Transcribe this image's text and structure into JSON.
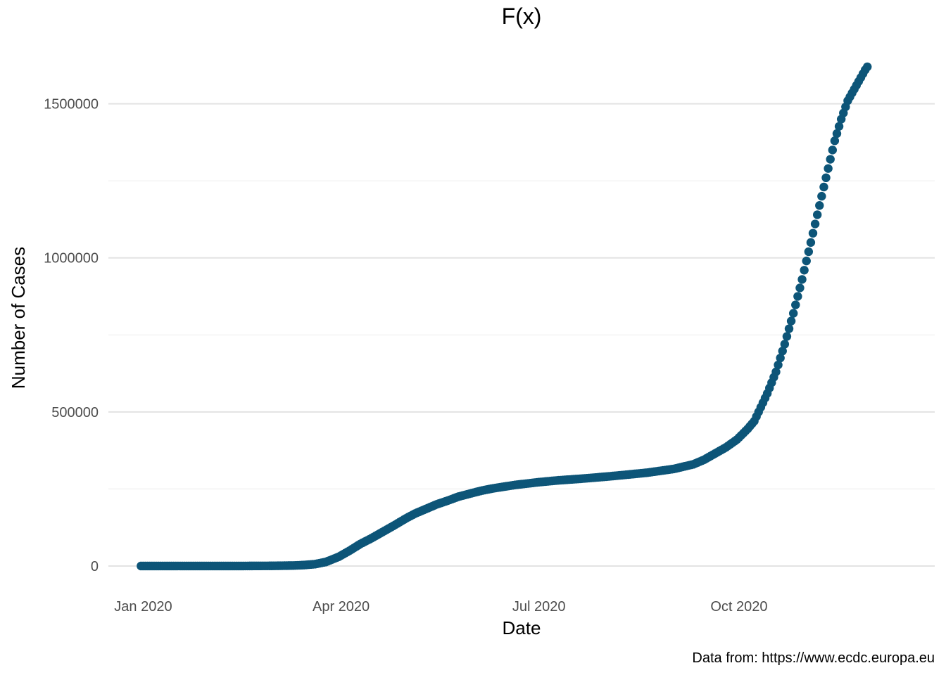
{
  "chart_data": {
    "type": "scatter",
    "title": "F(x)",
    "xlabel": "Date",
    "ylabel": "Number of Cases",
    "caption": "Data from: https://www.ecdc.europa.eu",
    "x_ticks": [
      {
        "label": "Jan 2020",
        "date": "2020-01-01"
      },
      {
        "label": "Apr 2020",
        "date": "2020-04-01"
      },
      {
        "label": "Jul 2020",
        "date": "2020-07-01"
      },
      {
        "label": "Oct 2020",
        "date": "2020-10-01"
      }
    ],
    "y_ticks": [
      {
        "label": "0",
        "value": 0
      },
      {
        "label": "500000",
        "value": 500000
      },
      {
        "label": "1000000",
        "value": 1000000
      },
      {
        "label": "1500000",
        "value": 1500000
      }
    ],
    "xlim": [
      "2019-12-16",
      "2020-12-30"
    ],
    "ylim": [
      -80000,
      1700000
    ],
    "grid": true,
    "point_color": "#0d5578",
    "series": [
      {
        "points": [
          [
            "2019-12-31",
            0
          ],
          [
            "2020-01-15",
            0
          ],
          [
            "2020-02-01",
            0
          ],
          [
            "2020-02-15",
            0
          ],
          [
            "2020-03-01",
            500
          ],
          [
            "2020-03-10",
            1500
          ],
          [
            "2020-03-15",
            3000
          ],
          [
            "2020-03-20",
            6000
          ],
          [
            "2020-03-25",
            13000
          ],
          [
            "2020-03-31",
            30000
          ],
          [
            "2020-04-05",
            50000
          ],
          [
            "2020-04-10",
            72000
          ],
          [
            "2020-04-15",
            90000
          ],
          [
            "2020-04-20",
            110000
          ],
          [
            "2020-04-25",
            130000
          ],
          [
            "2020-05-01",
            155000
          ],
          [
            "2020-05-05",
            170000
          ],
          [
            "2020-05-10",
            185000
          ],
          [
            "2020-05-15",
            200000
          ],
          [
            "2020-05-20",
            212000
          ],
          [
            "2020-05-25",
            225000
          ],
          [
            "2020-06-01",
            238000
          ],
          [
            "2020-06-05",
            245000
          ],
          [
            "2020-06-10",
            252000
          ],
          [
            "2020-06-20",
            263000
          ],
          [
            "2020-07-01",
            272000
          ],
          [
            "2020-07-10",
            278000
          ],
          [
            "2020-07-20",
            283000
          ],
          [
            "2020-08-01",
            290000
          ],
          [
            "2020-08-10",
            296000
          ],
          [
            "2020-08-20",
            303000
          ],
          [
            "2020-09-01",
            315000
          ],
          [
            "2020-09-10",
            330000
          ],
          [
            "2020-09-15",
            345000
          ],
          [
            "2020-09-20",
            365000
          ],
          [
            "2020-09-25",
            385000
          ],
          [
            "2020-09-30",
            410000
          ],
          [
            "2020-10-05",
            445000
          ],
          [
            "2020-10-08",
            470000
          ],
          [
            "2020-10-10",
            500000
          ],
          [
            "2020-10-14",
            560000
          ],
          [
            "2020-10-18",
            630000
          ],
          [
            "2020-10-22",
            720000
          ],
          [
            "2020-10-26",
            820000
          ],
          [
            "2020-10-30",
            930000
          ],
          [
            "2020-11-02",
            1020000
          ],
          [
            "2020-11-05",
            1110000
          ],
          [
            "2020-11-08",
            1200000
          ],
          [
            "2020-11-11",
            1290000
          ],
          [
            "2020-11-14",
            1380000
          ],
          [
            "2020-11-17",
            1450000
          ],
          [
            "2020-11-20",
            1510000
          ],
          [
            "2020-11-24",
            1560000
          ],
          [
            "2020-11-28",
            1610000
          ],
          [
            "2020-11-29",
            1620000
          ]
        ]
      }
    ]
  }
}
